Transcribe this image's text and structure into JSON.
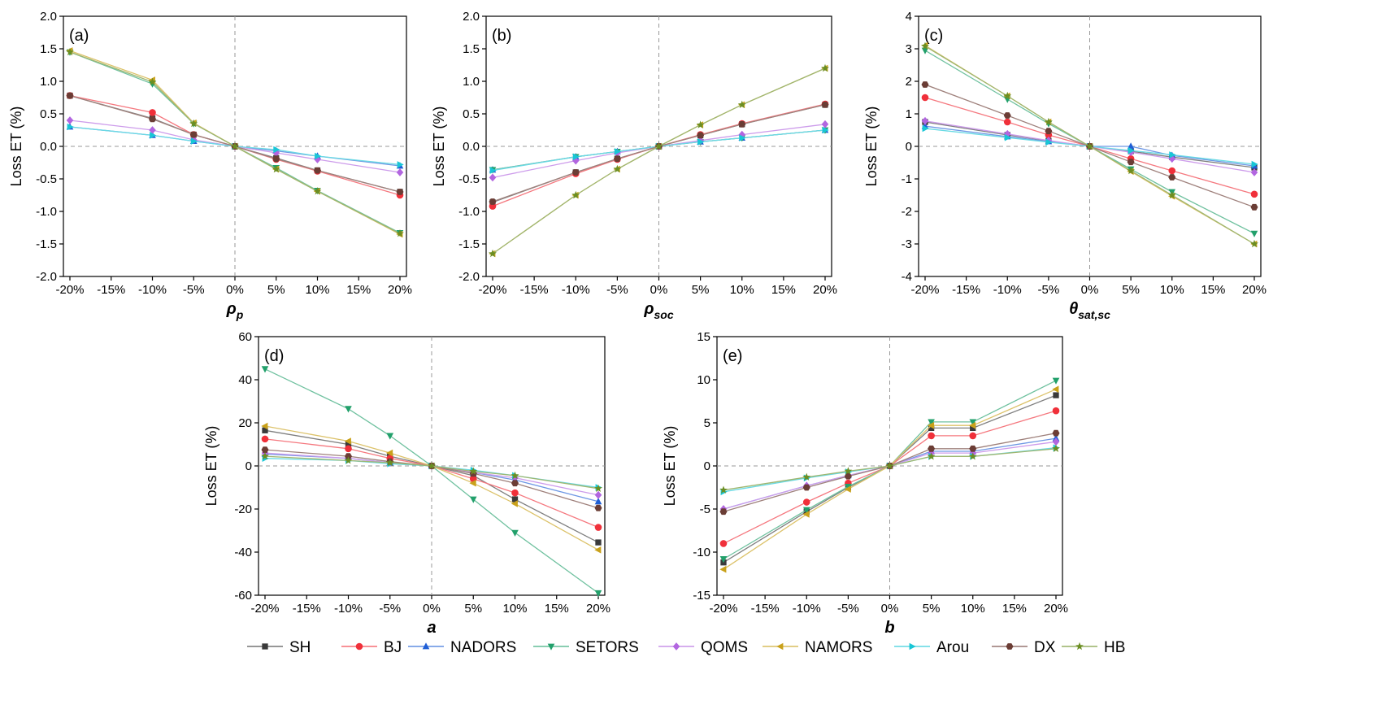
{
  "legend": [
    {
      "name": "SH",
      "color": "#3a3a3a",
      "marker": "square"
    },
    {
      "name": "BJ",
      "color": "#f0303a",
      "marker": "circle"
    },
    {
      "name": "NADORS",
      "color": "#1f5fd6",
      "marker": "triangle-up"
    },
    {
      "name": "SETORS",
      "color": "#22a06b",
      "marker": "triangle-down"
    },
    {
      "name": "QOMS",
      "color": "#b266e0",
      "marker": "diamond"
    },
    {
      "name": "NAMORS",
      "color": "#c9a11a",
      "marker": "triangle-left"
    },
    {
      "name": "Arou",
      "color": "#19c6d6",
      "marker": "triangle-right"
    },
    {
      "name": "DX",
      "color": "#6b3d35",
      "marker": "hexagon"
    },
    {
      "name": "HB",
      "color": "#6b8e23",
      "marker": "star"
    }
  ],
  "chart_data": [
    {
      "type": "line",
      "panel": "(a)",
      "xlabel_main": "ρ",
      "xlabel_sub": "p",
      "ylabel": "Loss ET (%)",
      "categories": [
        "-20%",
        "-10%",
        "-5%",
        "0%",
        "5%",
        "10%",
        "20%"
      ],
      "x": [
        -20,
        -10,
        -5,
        0,
        5,
        10,
        20
      ],
      "xticks": [
        -20,
        -15,
        -10,
        -5,
        0,
        5,
        10,
        15,
        20
      ],
      "xtick_labels": [
        "-20%",
        "-15%",
        "-10%",
        "-5%",
        "0%",
        "5%",
        "10%",
        "15%",
        "20%"
      ],
      "ylim": [
        -2.0,
        2.0
      ],
      "yticks": [
        -2.0,
        -1.5,
        -1.0,
        -0.5,
        0.0,
        0.5,
        1.0,
        1.5,
        2.0
      ],
      "ytick_labels": [
        "-2.0",
        "-1.5",
        "-1.0",
        "-0.5",
        "0.0",
        "0.5",
        "1.0",
        "1.5",
        "2.0"
      ],
      "series": [
        {
          "name": "SH",
          "values": [
            0.78,
            0.43,
            0.18,
            0,
            -0.18,
            -0.37,
            -0.7
          ]
        },
        {
          "name": "BJ",
          "values": [
            0.78,
            0.52,
            0.18,
            0,
            -0.2,
            -0.38,
            -0.75
          ]
        },
        {
          "name": "NADORS",
          "values": [
            0.3,
            0.17,
            0.08,
            0,
            -0.07,
            -0.15,
            -0.3
          ]
        },
        {
          "name": "SETORS",
          "values": [
            1.45,
            0.96,
            0.35,
            0,
            -0.33,
            -0.68,
            -1.33
          ]
        },
        {
          "name": "QOMS",
          "values": [
            0.4,
            0.25,
            0.1,
            0,
            -0.1,
            -0.2,
            -0.4
          ]
        },
        {
          "name": "NAMORS",
          "values": [
            1.47,
            1.02,
            0.36,
            0,
            -0.35,
            -0.69,
            -1.35
          ]
        },
        {
          "name": "Arou",
          "values": [
            0.3,
            0.17,
            0.08,
            0,
            -0.05,
            -0.15,
            -0.28
          ]
        },
        {
          "name": "DX",
          "values": [
            0.78,
            0.42,
            0.18,
            0,
            -0.19,
            -0.37,
            -0.7
          ]
        },
        {
          "name": "HB",
          "values": [
            1.45,
            0.99,
            0.35,
            0,
            -0.35,
            -0.69,
            -1.34
          ]
        }
      ]
    },
    {
      "type": "line",
      "panel": "(b)",
      "xlabel_main": "ρ",
      "xlabel_sub": "soc",
      "ylabel": "Loss ET (%)",
      "categories": [
        "-20%",
        "-10%",
        "-5%",
        "0%",
        "5%",
        "10%",
        "20%"
      ],
      "x": [
        -20,
        -10,
        -5,
        0,
        5,
        10,
        20
      ],
      "xticks": [
        -20,
        -15,
        -10,
        -5,
        0,
        5,
        10,
        15,
        20
      ],
      "xtick_labels": [
        "-20%",
        "-15%",
        "-10%",
        "-5%",
        "0%",
        "5%",
        "10%",
        "15%",
        "20%"
      ],
      "ylim": [
        -2.0,
        2.0
      ],
      "yticks": [
        -2.0,
        -1.5,
        -1.0,
        -0.5,
        0.0,
        0.5,
        1.0,
        1.5,
        2.0
      ],
      "ytick_labels": [
        "-2.0",
        "-1.5",
        "-1.0",
        "-0.5",
        "0.0",
        "0.5",
        "1.0",
        "1.5",
        "2.0"
      ],
      "series": [
        {
          "name": "SH",
          "values": [
            -0.86,
            -0.4,
            -0.19,
            0,
            0.17,
            0.34,
            0.64
          ]
        },
        {
          "name": "BJ",
          "values": [
            -0.92,
            -0.42,
            -0.2,
            0,
            0.18,
            0.35,
            0.65
          ]
        },
        {
          "name": "NADORS",
          "values": [
            -0.36,
            -0.16,
            -0.08,
            0,
            0.07,
            0.13,
            0.25
          ]
        },
        {
          "name": "SETORS",
          "values": [
            -0.36,
            -0.16,
            -0.08,
            0,
            0.07,
            0.13,
            0.25
          ]
        },
        {
          "name": "QOMS",
          "values": [
            -0.48,
            -0.22,
            -0.1,
            0,
            0.09,
            0.18,
            0.34
          ]
        },
        {
          "name": "NAMORS",
          "values": [
            -1.65,
            -0.75,
            -0.35,
            0,
            0.33,
            0.64,
            1.2
          ]
        },
        {
          "name": "Arou",
          "values": [
            -0.37,
            -0.16,
            -0.08,
            0,
            0.07,
            0.13,
            0.25
          ]
        },
        {
          "name": "DX",
          "values": [
            -0.85,
            -0.4,
            -0.19,
            0,
            0.17,
            0.34,
            0.64
          ]
        },
        {
          "name": "HB",
          "values": [
            -1.65,
            -0.75,
            -0.35,
            0,
            0.33,
            0.64,
            1.2
          ]
        }
      ]
    },
    {
      "type": "line",
      "panel": "(c)",
      "xlabel_main": "θ",
      "xlabel_sub": "sat,sc",
      "ylabel": "Loss ET (%)",
      "categories": [
        "-20%",
        "-10%",
        "-5%",
        "0%",
        "5%",
        "10%",
        "20%"
      ],
      "x": [
        -20,
        -10,
        -5,
        0,
        5,
        10,
        20
      ],
      "xticks": [
        -20,
        -15,
        -10,
        -5,
        0,
        5,
        10,
        15,
        20
      ],
      "xtick_labels": [
        "-20%",
        "-15%",
        "-10%",
        "-5%",
        "0%",
        "5%",
        "10%",
        "15%",
        "20%"
      ],
      "ylim": [
        -4,
        4
      ],
      "yticks": [
        -4,
        -3,
        -2,
        -1,
        0,
        1,
        2,
        3,
        4
      ],
      "ytick_labels": [
        "-4",
        "-3",
        "-2",
        "-1",
        "0",
        "1",
        "2",
        "3",
        "4"
      ],
      "series": [
        {
          "name": "SH",
          "values": [
            0.75,
            0.35,
            0.17,
            0,
            -0.15,
            -0.33,
            -0.65
          ]
        },
        {
          "name": "BJ",
          "values": [
            1.5,
            0.75,
            0.35,
            0,
            -0.38,
            -0.75,
            -1.47
          ]
        },
        {
          "name": "NADORS",
          "values": [
            0.62,
            0.3,
            0.15,
            0,
            0.0,
            -0.28,
            -0.6
          ]
        },
        {
          "name": "SETORS",
          "values": [
            2.95,
            1.45,
            0.7,
            0,
            -0.7,
            -1.4,
            -2.68
          ]
        },
        {
          "name": "QOMS",
          "values": [
            0.78,
            0.38,
            0.18,
            0,
            -0.18,
            -0.38,
            -0.8
          ]
        },
        {
          "name": "NAMORS",
          "values": [
            3.1,
            1.55,
            0.75,
            0,
            -0.77,
            -1.53,
            -3.0
          ]
        },
        {
          "name": "Arou",
          "values": [
            0.55,
            0.27,
            0.13,
            0,
            -0.13,
            -0.26,
            -0.55
          ]
        },
        {
          "name": "DX",
          "values": [
            1.9,
            0.95,
            0.47,
            0,
            -0.48,
            -0.95,
            -1.87
          ]
        },
        {
          "name": "HB",
          "values": [
            3.08,
            1.55,
            0.75,
            0,
            -0.75,
            -1.5,
            -3.0
          ]
        }
      ]
    },
    {
      "type": "line",
      "panel": "(d)",
      "xlabel_main": "a",
      "xlabel_sub": "",
      "ylabel": "Loss ET (%)",
      "categories": [
        "-20%",
        "-10%",
        "-5%",
        "0%",
        "5%",
        "10%",
        "20%"
      ],
      "x": [
        -20,
        -10,
        -5,
        0,
        5,
        10,
        20
      ],
      "xticks": [
        -20,
        -15,
        -10,
        -5,
        0,
        5,
        10,
        15,
        20
      ],
      "xtick_labels": [
        "-20%",
        "-15%",
        "-10%",
        "-5%",
        "0%",
        "5%",
        "10%",
        "15%",
        "20%"
      ],
      "ylim": [
        -60,
        60
      ],
      "yticks": [
        -60,
        -40,
        -20,
        0,
        20,
        40,
        60
      ],
      "ytick_labels": [
        "-60",
        "-40",
        "-20",
        "0",
        "20",
        "40",
        "60"
      ],
      "series": [
        {
          "name": "SH",
          "values": [
            16.5,
            10.0,
            4.5,
            0,
            -4.5,
            -15.5,
            -35.5
          ]
        },
        {
          "name": "BJ",
          "values": [
            12.5,
            8.0,
            3.5,
            0,
            -6.0,
            -12.5,
            -28.5
          ]
        },
        {
          "name": "NADORS",
          "values": [
            5.5,
            3.5,
            1.5,
            0,
            -3.0,
            -6.5,
            -16.5
          ]
        },
        {
          "name": "SETORS",
          "values": [
            45.0,
            26.5,
            14.0,
            0,
            -15.5,
            -31.0,
            -59.0
          ]
        },
        {
          "name": "QOMS",
          "values": [
            6.0,
            3.5,
            1.5,
            0,
            -3.0,
            -5.5,
            -13.5
          ]
        },
        {
          "name": "NAMORS",
          "values": [
            18.5,
            11.5,
            6.0,
            0,
            -8.0,
            -17.5,
            -39.0
          ]
        },
        {
          "name": "Arou",
          "values": [
            3.5,
            2.5,
            1.0,
            0,
            -2.0,
            -4.5,
            -10.0
          ]
        },
        {
          "name": "DX",
          "values": [
            7.5,
            4.5,
            2.0,
            0,
            -3.5,
            -8.0,
            -19.5
          ]
        },
        {
          "name": "HB",
          "values": [
            4.5,
            2.5,
            1.5,
            0,
            -2.5,
            -4.5,
            -10.5
          ]
        }
      ]
    },
    {
      "type": "line",
      "panel": "(e)",
      "xlabel_main": "b",
      "xlabel_sub": "",
      "ylabel": "Loss ET (%)",
      "categories": [
        "-20%",
        "-10%",
        "-5%",
        "0%",
        "5%",
        "10%",
        "20%"
      ],
      "x": [
        -20,
        -10,
        -5,
        0,
        5,
        10,
        20
      ],
      "xticks": [
        -20,
        -15,
        -10,
        -5,
        0,
        5,
        10,
        15,
        20
      ],
      "xtick_labels": [
        "-20%",
        "-15%",
        "-10%",
        "-5%",
        "0%",
        "5%",
        "10%",
        "15%",
        "20%"
      ],
      "ylim": [
        -15,
        15
      ],
      "yticks": [
        -15,
        -10,
        -5,
        0,
        5,
        10,
        15
      ],
      "ytick_labels": [
        "-15",
        "-10",
        "-5",
        "0",
        "5",
        "10",
        "15"
      ],
      "series": [
        {
          "name": "SH",
          "values": [
            -11.2,
            -5.3,
            -2.5,
            0,
            4.4,
            4.4,
            8.2
          ]
        },
        {
          "name": "BJ",
          "values": [
            -9.0,
            -4.2,
            -2.0,
            0,
            3.5,
            3.5,
            6.4
          ]
        },
        {
          "name": "NADORS",
          "values": [
            -5.0,
            -2.3,
            -1.1,
            0,
            1.7,
            1.7,
            3.2
          ]
        },
        {
          "name": "SETORS",
          "values": [
            -10.8,
            -5.1,
            -2.4,
            0,
            5.1,
            5.1,
            9.9
          ]
        },
        {
          "name": "QOMS",
          "values": [
            -5.0,
            -2.3,
            -1.1,
            0,
            1.5,
            1.5,
            2.8
          ]
        },
        {
          "name": "NAMORS",
          "values": [
            -12.0,
            -5.6,
            -2.7,
            0,
            4.7,
            4.7,
            8.9
          ]
        },
        {
          "name": "Arou",
          "values": [
            -3.0,
            -1.4,
            -0.7,
            0,
            1.1,
            1.1,
            2.1
          ]
        },
        {
          "name": "DX",
          "values": [
            -5.3,
            -2.5,
            -1.2,
            0,
            2.0,
            2.0,
            3.8
          ]
        },
        {
          "name": "HB",
          "values": [
            -2.8,
            -1.3,
            -0.6,
            0,
            1.1,
            1.1,
            2.0
          ]
        }
      ]
    }
  ]
}
